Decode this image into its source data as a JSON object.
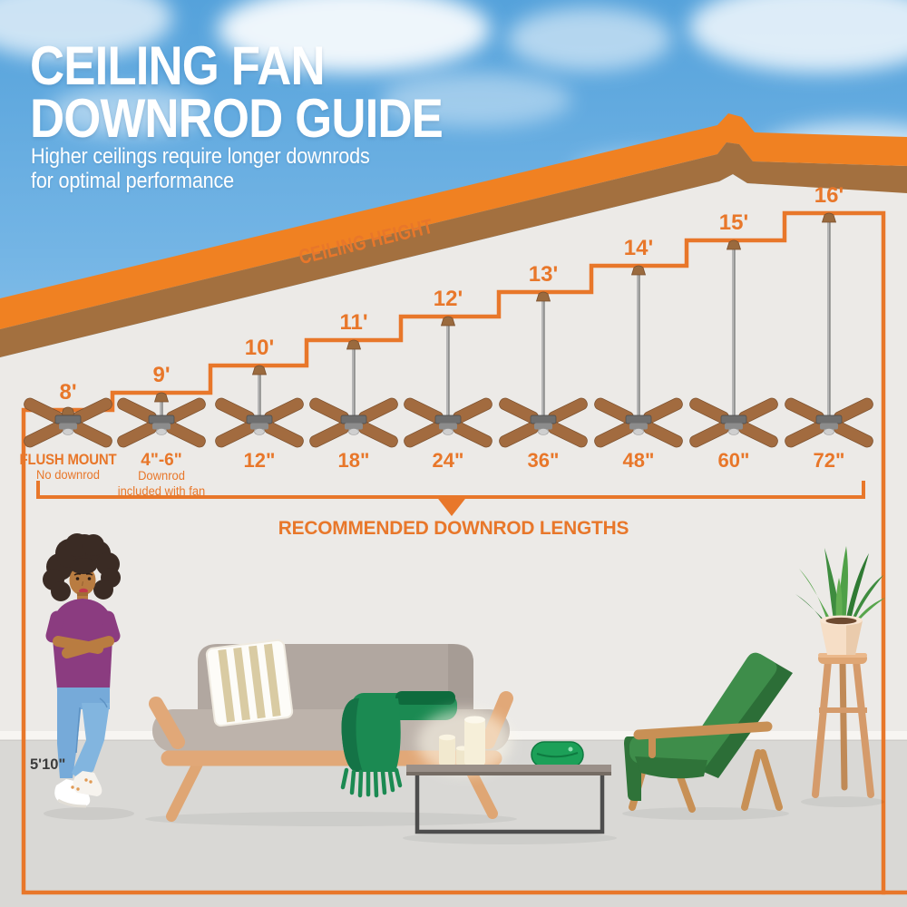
{
  "title": {
    "line1": "CEILING FAN",
    "line2": "DOWNROD GUIDE",
    "subtitle_line1": "Higher ceilings require longer downrods",
    "subtitle_line2": "for optimal performance"
  },
  "diagram": {
    "ceiling_height_label": "CEILING HEIGHT",
    "bracket_label": "RECOMMENDED DOWNROD LENGTHS",
    "fans": [
      {
        "ceiling_height": "8'",
        "downrod": "FLUSH MOUNT",
        "note_lines": [
          "No downrod"
        ]
      },
      {
        "ceiling_height": "9'",
        "downrod": "4\"-6\"",
        "note_lines": [
          "Downrod",
          "included with fan"
        ]
      },
      {
        "ceiling_height": "10'",
        "downrod": "12\""
      },
      {
        "ceiling_height": "11'",
        "downrod": "18\""
      },
      {
        "ceiling_height": "12'",
        "downrod": "24\""
      },
      {
        "ceiling_height": "13'",
        "downrod": "36\""
      },
      {
        "ceiling_height": "14'",
        "downrod": "48\""
      },
      {
        "ceiling_height": "15'",
        "downrod": "60\""
      },
      {
        "ceiling_height": "16'",
        "downrod": "72\""
      }
    ]
  },
  "scene": {
    "person_height_label": "5'10\""
  },
  "colors": {
    "accent_orange": "#E8772A",
    "roof_orange": "#F08122",
    "roof_brown": "#A3703F",
    "sky_blue": "#64ABDF",
    "wall": "#ECEAE7",
    "floor": "#D9D8D5",
    "fan_blade_brown": "#A26B3F",
    "couch_taupe": "#B3A9A2",
    "wood_tan": "#E1A878",
    "throw_green": "#1B8A52",
    "chair_green": "#3E8D4A",
    "title_white": "#FFFFFF"
  }
}
